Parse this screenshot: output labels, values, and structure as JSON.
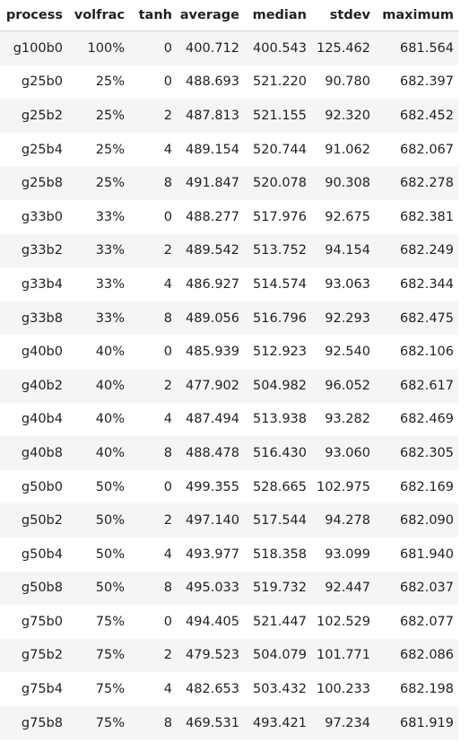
{
  "table": {
    "columns": [
      "process",
      "volfrac",
      "tanh",
      "average",
      "median",
      "stdev",
      "maximum"
    ],
    "rows": [
      [
        "g100b0",
        "100%",
        "0",
        "400.712",
        "400.543",
        "125.462",
        "681.564"
      ],
      [
        "g25b0",
        "25%",
        "0",
        "488.693",
        "521.220",
        "90.780",
        "682.397"
      ],
      [
        "g25b2",
        "25%",
        "2",
        "487.813",
        "521.155",
        "92.320",
        "682.452"
      ],
      [
        "g25b4",
        "25%",
        "4",
        "489.154",
        "520.744",
        "91.062",
        "682.067"
      ],
      [
        "g25b8",
        "25%",
        "8",
        "491.847",
        "520.078",
        "90.308",
        "682.278"
      ],
      [
        "g33b0",
        "33%",
        "0",
        "488.277",
        "517.976",
        "92.675",
        "682.381"
      ],
      [
        "g33b2",
        "33%",
        "2",
        "489.542",
        "513.752",
        "94.154",
        "682.249"
      ],
      [
        "g33b4",
        "33%",
        "4",
        "486.927",
        "514.574",
        "93.063",
        "682.344"
      ],
      [
        "g33b8",
        "33%",
        "8",
        "489.056",
        "516.796",
        "92.293",
        "682.475"
      ],
      [
        "g40b0",
        "40%",
        "0",
        "485.939",
        "512.923",
        "92.540",
        "682.106"
      ],
      [
        "g40b2",
        "40%",
        "2",
        "477.902",
        "504.982",
        "96.052",
        "682.617"
      ],
      [
        "g40b4",
        "40%",
        "4",
        "487.494",
        "513.938",
        "93.282",
        "682.469"
      ],
      [
        "g40b8",
        "40%",
        "8",
        "488.478",
        "516.430",
        "93.060",
        "682.305"
      ],
      [
        "g50b0",
        "50%",
        "0",
        "499.355",
        "528.665",
        "102.975",
        "682.169"
      ],
      [
        "g50b2",
        "50%",
        "2",
        "497.140",
        "517.544",
        "94.278",
        "682.090"
      ],
      [
        "g50b4",
        "50%",
        "4",
        "493.977",
        "518.358",
        "93.099",
        "681.940"
      ],
      [
        "g50b8",
        "50%",
        "8",
        "495.033",
        "519.732",
        "92.447",
        "682.037"
      ],
      [
        "g75b0",
        "75%",
        "0",
        "494.405",
        "521.447",
        "102.529",
        "682.077"
      ],
      [
        "g75b2",
        "75%",
        "2",
        "479.523",
        "504.079",
        "101.771",
        "682.086"
      ],
      [
        "g75b4",
        "75%",
        "4",
        "482.653",
        "503.432",
        "100.233",
        "682.198"
      ],
      [
        "g75b8",
        "75%",
        "8",
        "469.531",
        "493.421",
        "97.234",
        "681.919"
      ]
    ]
  }
}
